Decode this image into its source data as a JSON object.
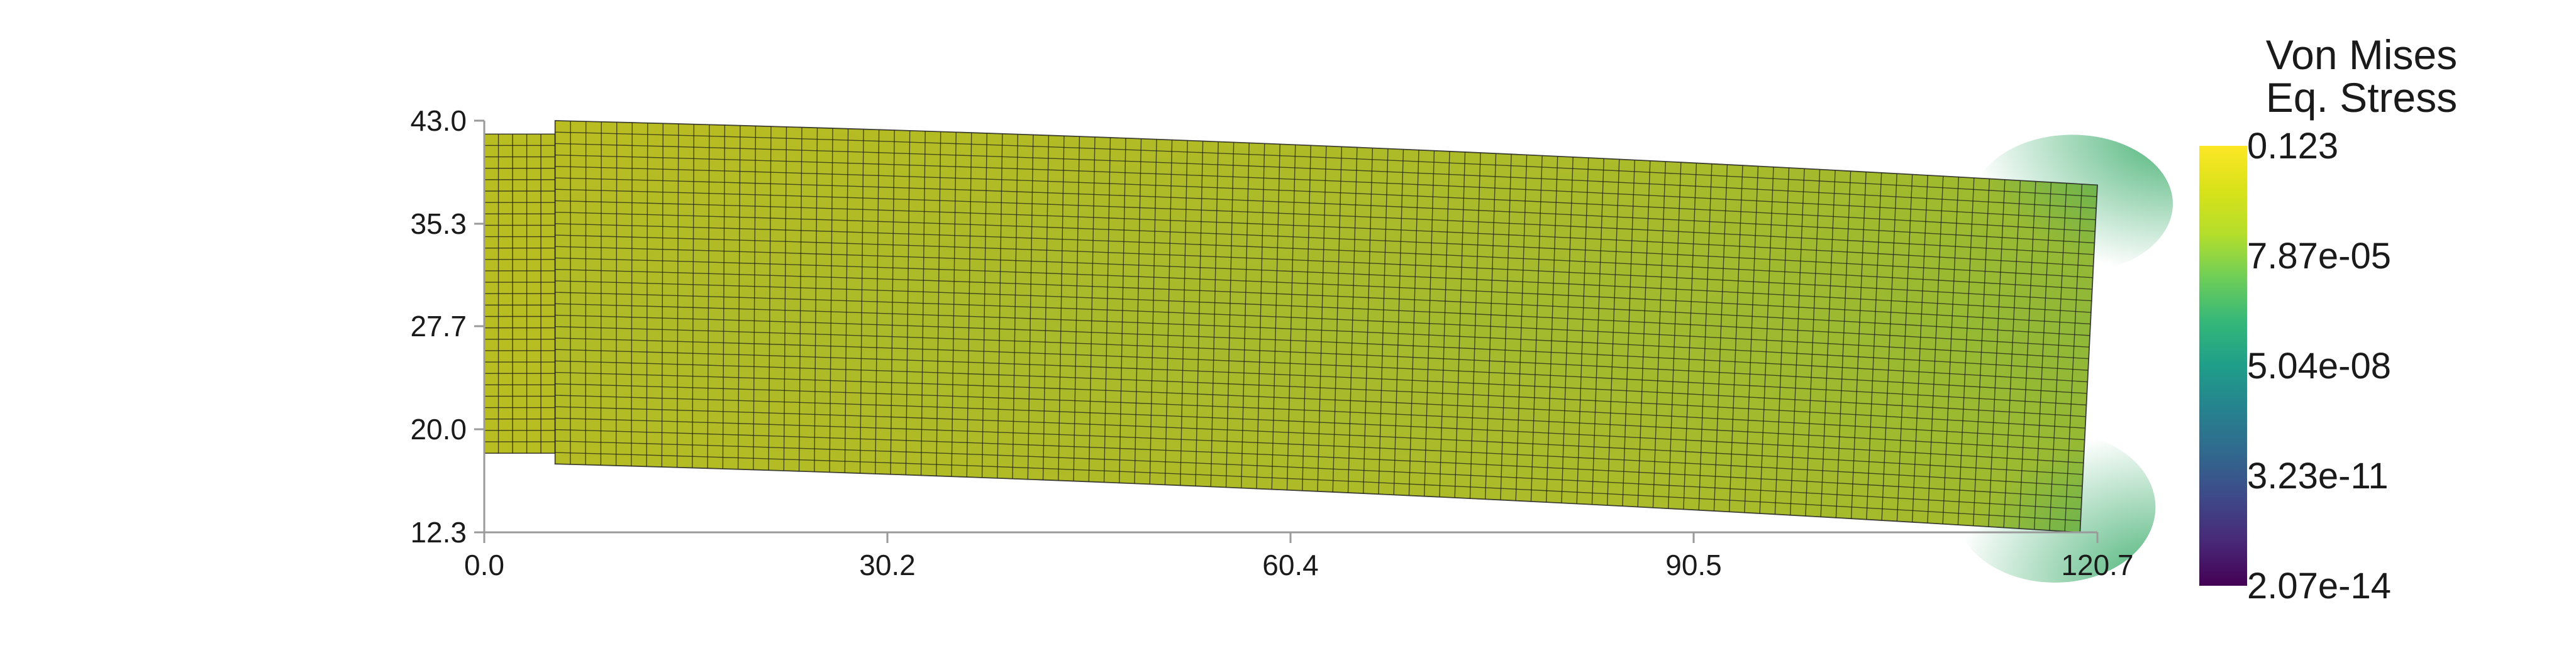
{
  "chart_data": {
    "type": "heatmap",
    "x_ticks": [
      "0.0",
      "30.2",
      "60.4",
      "90.5",
      "120.7"
    ],
    "y_ticks": [
      "43.0",
      "35.3",
      "27.7",
      "20.0",
      "12.3"
    ],
    "xlim": [
      0.0,
      120.7
    ],
    "ylim": [
      12.3,
      43.0
    ],
    "colorbar": {
      "title_line1": "Von Mises",
      "title_line2": "Eq. Stress",
      "labels": [
        "0.123",
        "7.87e-05",
        "5.04e-08",
        "3.23e-11",
        "2.07e-14"
      ],
      "colormap": "viridis",
      "scale": "log"
    },
    "mesh": {
      "clamp_block": {
        "x": [
          0.0,
          5.3
        ],
        "y": [
          18.2,
          42.0
        ]
      },
      "beam_top_left": [
        5.3,
        43.0
      ],
      "beam_top_right": [
        120.7,
        38.2
      ],
      "beam_bottom_left": [
        5.3,
        17.4
      ],
      "beam_bottom_right": [
        119.4,
        12.3
      ],
      "columns": 100,
      "rows": 30
    },
    "colors": {
      "high": "#b8bd22",
      "mid": "#a7ba2a",
      "corner": "#46b56a",
      "grid_line": "#1a1a1a",
      "axis": "#999999"
    }
  }
}
